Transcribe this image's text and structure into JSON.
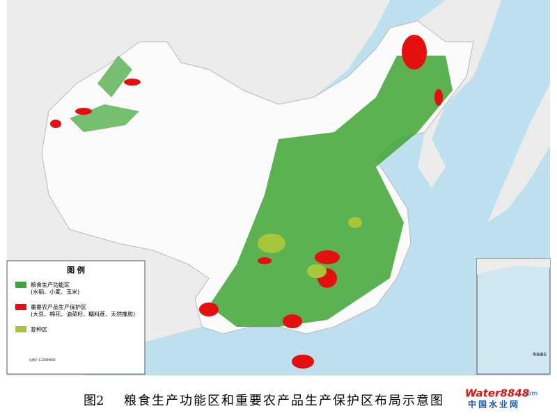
{
  "legend": {
    "title": "图 例",
    "items": [
      {
        "label": "粮食生产功能区",
        "note": "(水稻、小麦、玉米)",
        "color": "#3fa534"
      },
      {
        "label": "重要农产品生产保护区",
        "note": "(大豆、棉花、油菜籽、糖料蔗、天然橡胶)",
        "color": "#e3100f"
      },
      {
        "label": "复种区",
        "color": "#a8c63a"
      }
    ]
  },
  "scale": "比例尺 1:27000000",
  "inset": {
    "label": "南海诸岛"
  },
  "caption": {
    "figure": "图2",
    "title": "粮食生产功能区和重要农产品生产保护区布局示意图"
  },
  "watermark": {
    "brand": "Water8848",
    "domain": ".com",
    "name": "中国水业网"
  }
}
